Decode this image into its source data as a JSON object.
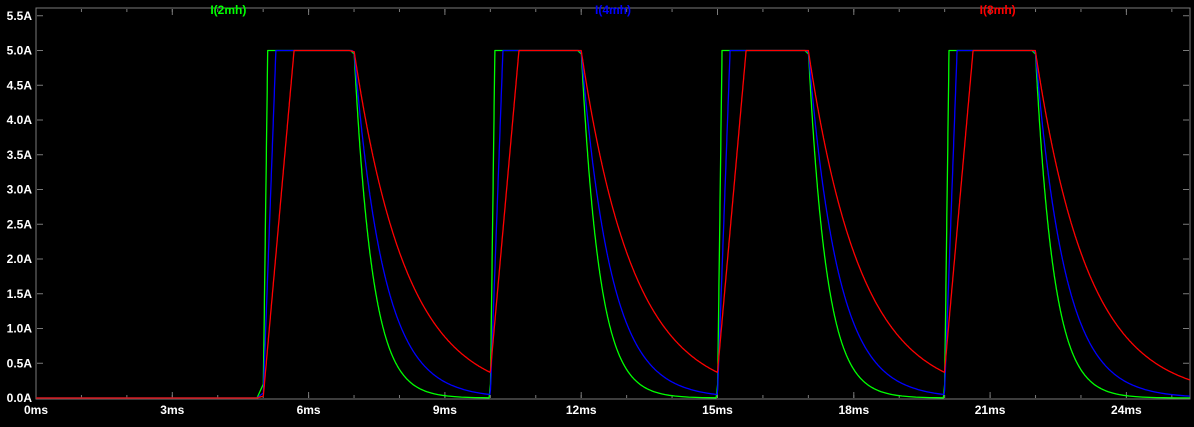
{
  "window": {
    "background": "#000000"
  },
  "plot": {
    "border_color": "#7a7a7a",
    "tick_color": "#7a7a7a",
    "text_color": "#ffffff"
  },
  "chart_data": {
    "type": "line",
    "title": "",
    "xlabel": "",
    "ylabel": "",
    "x_unit": "ms",
    "y_unit": "A",
    "x_range_ms": [
      0,
      25.4
    ],
    "y_range_A": [
      0,
      5.6
    ],
    "grid": false,
    "legend_position": "top",
    "x_tick_values_ms": [
      0,
      3,
      6,
      9,
      12,
      15,
      18,
      21,
      24
    ],
    "x_tick_labels": [
      "0ms",
      "3ms",
      "6ms",
      "9ms",
      "12ms",
      "15ms",
      "18ms",
      "21ms",
      "24ms"
    ],
    "y_tick_values_A": [
      0.0,
      0.5,
      1.0,
      1.5,
      2.0,
      2.5,
      3.0,
      3.5,
      4.0,
      4.5,
      5.0,
      5.5
    ],
    "y_tick_labels": [
      "0.0A",
      "0.5A",
      "1.0A",
      "1.5A",
      "2.0A",
      "2.5A",
      "3.0A",
      "3.5A",
      "4.0A",
      "4.5A",
      "5.0A",
      "5.5A"
    ],
    "amplitude_A": 5.0,
    "pulse_on_windows_ms": [
      [
        5,
        7
      ],
      [
        10,
        12
      ],
      [
        15,
        17
      ],
      [
        20,
        22
      ]
    ],
    "waveform_description": "Inductor currents: zero until 5ms, ramp up to 5A plateau during each 2ms on-window, exponential decay between pulses; smaller inductance rises and decays fastest",
    "series": [
      {
        "name": "I(2mh)",
        "color": "#00ff00",
        "plateau_A": 5.0,
        "rise_time_ms": 0.1,
        "decay_tau_ms": 0.4,
        "residual_A_before_next_pulse": 0.0
      },
      {
        "name": "I(4mh)",
        "color": "#0000ff",
        "plateau_A": 5.0,
        "rise_time_ms": 0.28,
        "decay_tau_ms": 0.65,
        "residual_A_before_next_pulse": 0.05
      },
      {
        "name": "I(8mh)",
        "color": "#ff0000",
        "plateau_A": 5.0,
        "rise_time_ms": 0.68,
        "decay_tau_ms": 1.15,
        "residual_A_before_next_pulse": 0.3
      }
    ]
  }
}
